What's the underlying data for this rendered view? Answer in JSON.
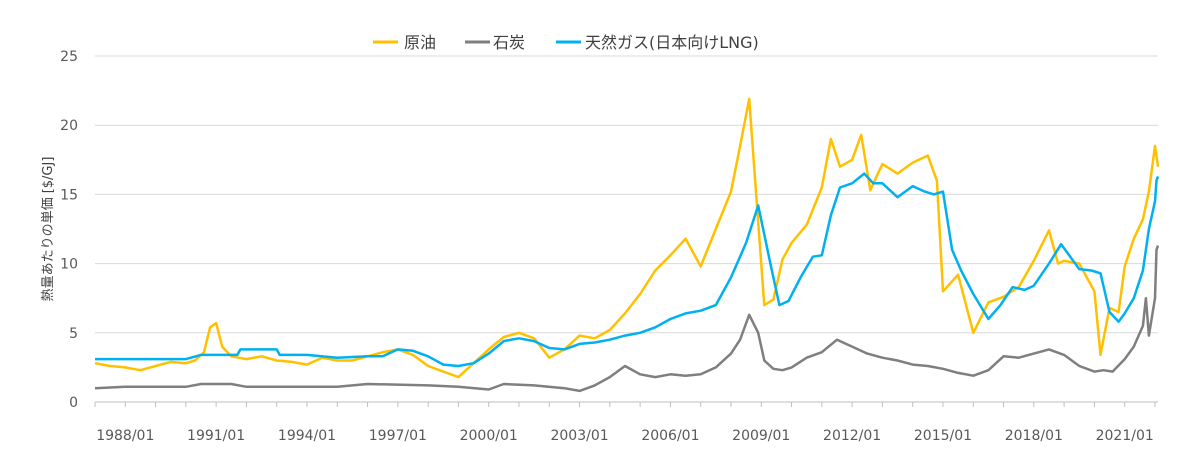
{
  "chart_data": {
    "type": "line",
    "title": "",
    "ylabel": "熱量あたりの単価 [$/GJ]",
    "xlabel": "",
    "ylim": [
      0,
      25
    ],
    "y_ticks": [
      "0",
      "5",
      "10",
      "15",
      "20",
      "25"
    ],
    "x_range": [
      1987.0,
      2022.1
    ],
    "x_ticks": [
      "1988/01",
      "1991/01",
      "1994/01",
      "1997/01",
      "2000/01",
      "2003/01",
      "2006/01",
      "2009/01",
      "2012/01",
      "2015/01",
      "2018/01",
      "2021/01"
    ],
    "grid": true,
    "legend_position": "top",
    "series": [
      {
        "name": "原油",
        "color": "#FFC000",
        "points": [
          [
            1987.0,
            2.8
          ],
          [
            1987.5,
            2.6
          ],
          [
            1988.0,
            2.5
          ],
          [
            1988.5,
            2.3
          ],
          [
            1989.0,
            2.6
          ],
          [
            1989.5,
            2.9
          ],
          [
            1990.0,
            2.8
          ],
          [
            1990.3,
            3.0
          ],
          [
            1990.6,
            3.6
          ],
          [
            1990.8,
            5.4
          ],
          [
            1991.0,
            5.7
          ],
          [
            1991.2,
            4.0
          ],
          [
            1991.5,
            3.3
          ],
          [
            1992.0,
            3.1
          ],
          [
            1992.5,
            3.3
          ],
          [
            1993.0,
            3.0
          ],
          [
            1993.5,
            2.9
          ],
          [
            1994.0,
            2.7
          ],
          [
            1994.5,
            3.2
          ],
          [
            1995.0,
            3.0
          ],
          [
            1995.5,
            3.0
          ],
          [
            1996.0,
            3.3
          ],
          [
            1996.5,
            3.6
          ],
          [
            1997.0,
            3.8
          ],
          [
            1997.5,
            3.4
          ],
          [
            1998.0,
            2.6
          ],
          [
            1998.5,
            2.2
          ],
          [
            1999.0,
            1.8
          ],
          [
            1999.5,
            2.8
          ],
          [
            2000.0,
            3.8
          ],
          [
            2000.5,
            4.7
          ],
          [
            2001.0,
            5.0
          ],
          [
            2001.5,
            4.6
          ],
          [
            2002.0,
            3.2
          ],
          [
            2002.5,
            3.8
          ],
          [
            2003.0,
            4.8
          ],
          [
            2003.5,
            4.6
          ],
          [
            2004.0,
            5.2
          ],
          [
            2004.5,
            6.4
          ],
          [
            2005.0,
            7.8
          ],
          [
            2005.5,
            9.5
          ],
          [
            2006.0,
            10.6
          ],
          [
            2006.5,
            11.8
          ],
          [
            2007.0,
            9.8
          ],
          [
            2007.5,
            12.5
          ],
          [
            2008.0,
            15.2
          ],
          [
            2008.3,
            18.5
          ],
          [
            2008.6,
            21.9
          ],
          [
            2008.9,
            13.0
          ],
          [
            2009.1,
            7.0
          ],
          [
            2009.4,
            7.4
          ],
          [
            2009.7,
            10.3
          ],
          [
            2010.0,
            11.5
          ],
          [
            2010.5,
            12.8
          ],
          [
            2011.0,
            15.5
          ],
          [
            2011.3,
            19.0
          ],
          [
            2011.6,
            17.0
          ],
          [
            2012.0,
            17.5
          ],
          [
            2012.3,
            19.3
          ],
          [
            2012.6,
            15.3
          ],
          [
            2013.0,
            17.2
          ],
          [
            2013.5,
            16.5
          ],
          [
            2014.0,
            17.3
          ],
          [
            2014.5,
            17.8
          ],
          [
            2014.8,
            16.0
          ],
          [
            2015.0,
            8.0
          ],
          [
            2015.5,
            9.2
          ],
          [
            2016.0,
            5.0
          ],
          [
            2016.5,
            7.2
          ],
          [
            2017.0,
            7.6
          ],
          [
            2017.5,
            8.3
          ],
          [
            2018.0,
            10.2
          ],
          [
            2018.5,
            12.4
          ],
          [
            2018.8,
            10.0
          ],
          [
            2019.0,
            10.2
          ],
          [
            2019.5,
            10.0
          ],
          [
            2020.0,
            8.0
          ],
          [
            2020.2,
            3.4
          ],
          [
            2020.5,
            6.8
          ],
          [
            2020.8,
            6.5
          ],
          [
            2021.0,
            9.8
          ],
          [
            2021.3,
            11.8
          ],
          [
            2021.6,
            13.2
          ],
          [
            2021.8,
            15.2
          ],
          [
            2022.0,
            18.5
          ],
          [
            2022.1,
            17.0
          ]
        ]
      },
      {
        "name": "石炭",
        "color": "#7F7F7F",
        "points": [
          [
            1987.0,
            1.0
          ],
          [
            1988.0,
            1.1
          ],
          [
            1990.0,
            1.1
          ],
          [
            1990.5,
            1.3
          ],
          [
            1991.5,
            1.3
          ],
          [
            1992.0,
            1.1
          ],
          [
            1995.0,
            1.1
          ],
          [
            1996.0,
            1.3
          ],
          [
            1998.0,
            1.2
          ],
          [
            1999.0,
            1.1
          ],
          [
            2000.0,
            0.9
          ],
          [
            2000.5,
            1.3
          ],
          [
            2001.5,
            1.2
          ],
          [
            2002.5,
            1.0
          ],
          [
            2003.0,
            0.8
          ],
          [
            2003.5,
            1.2
          ],
          [
            2004.0,
            1.8
          ],
          [
            2004.5,
            2.6
          ],
          [
            2005.0,
            2.0
          ],
          [
            2005.5,
            1.8
          ],
          [
            2006.0,
            2.0
          ],
          [
            2006.5,
            1.9
          ],
          [
            2007.0,
            2.0
          ],
          [
            2007.5,
            2.5
          ],
          [
            2008.0,
            3.5
          ],
          [
            2008.3,
            4.5
          ],
          [
            2008.6,
            6.3
          ],
          [
            2008.9,
            5.0
          ],
          [
            2009.1,
            3.0
          ],
          [
            2009.4,
            2.4
          ],
          [
            2009.7,
            2.3
          ],
          [
            2010.0,
            2.5
          ],
          [
            2010.5,
            3.2
          ],
          [
            2011.0,
            3.6
          ],
          [
            2011.5,
            4.5
          ],
          [
            2012.0,
            4.0
          ],
          [
            2012.5,
            3.5
          ],
          [
            2013.0,
            3.2
          ],
          [
            2013.5,
            3.0
          ],
          [
            2014.0,
            2.7
          ],
          [
            2014.5,
            2.6
          ],
          [
            2015.0,
            2.4
          ],
          [
            2015.5,
            2.1
          ],
          [
            2016.0,
            1.9
          ],
          [
            2016.5,
            2.3
          ],
          [
            2017.0,
            3.3
          ],
          [
            2017.5,
            3.2
          ],
          [
            2018.0,
            3.5
          ],
          [
            2018.5,
            3.8
          ],
          [
            2019.0,
            3.4
          ],
          [
            2019.5,
            2.6
          ],
          [
            2020.0,
            2.2
          ],
          [
            2020.3,
            2.3
          ],
          [
            2020.6,
            2.2
          ],
          [
            2021.0,
            3.1
          ],
          [
            2021.3,
            4.0
          ],
          [
            2021.6,
            5.5
          ],
          [
            2021.7,
            7.5
          ],
          [
            2021.8,
            4.8
          ],
          [
            2022.0,
            7.5
          ],
          [
            2022.05,
            11.0
          ],
          [
            2022.1,
            11.3
          ]
        ]
      },
      {
        "name": "天然ガス(日本向けLNG)",
        "color": "#00B0F0",
        "points": [
          [
            1987.0,
            3.1
          ],
          [
            1990.0,
            3.1
          ],
          [
            1990.5,
            3.4
          ],
          [
            1991.7,
            3.4
          ],
          [
            1991.8,
            3.8
          ],
          [
            1993.0,
            3.8
          ],
          [
            1993.1,
            3.4
          ],
          [
            1994.0,
            3.4
          ],
          [
            1995.0,
            3.2
          ],
          [
            1996.0,
            3.3
          ],
          [
            1996.5,
            3.3
          ],
          [
            1997.0,
            3.8
          ],
          [
            1997.5,
            3.7
          ],
          [
            1998.0,
            3.3
          ],
          [
            1998.5,
            2.7
          ],
          [
            1999.0,
            2.6
          ],
          [
            1999.5,
            2.8
          ],
          [
            2000.0,
            3.5
          ],
          [
            2000.5,
            4.4
          ],
          [
            2001.0,
            4.6
          ],
          [
            2001.5,
            4.4
          ],
          [
            2002.0,
            3.9
          ],
          [
            2002.5,
            3.8
          ],
          [
            2003.0,
            4.2
          ],
          [
            2003.5,
            4.3
          ],
          [
            2004.0,
            4.5
          ],
          [
            2004.5,
            4.8
          ],
          [
            2005.0,
            5.0
          ],
          [
            2005.5,
            5.4
          ],
          [
            2006.0,
            6.0
          ],
          [
            2006.5,
            6.4
          ],
          [
            2007.0,
            6.6
          ],
          [
            2007.5,
            7.0
          ],
          [
            2008.0,
            9.0
          ],
          [
            2008.5,
            11.5
          ],
          [
            2008.9,
            14.2
          ],
          [
            2009.3,
            10.0
          ],
          [
            2009.6,
            7.0
          ],
          [
            2009.9,
            7.3
          ],
          [
            2010.3,
            9.0
          ],
          [
            2010.7,
            10.5
          ],
          [
            2011.0,
            10.6
          ],
          [
            2011.3,
            13.5
          ],
          [
            2011.6,
            15.5
          ],
          [
            2012.0,
            15.8
          ],
          [
            2012.4,
            16.5
          ],
          [
            2012.7,
            15.8
          ],
          [
            2013.0,
            15.8
          ],
          [
            2013.5,
            14.8
          ],
          [
            2014.0,
            15.6
          ],
          [
            2014.4,
            15.2
          ],
          [
            2014.7,
            15.0
          ],
          [
            2015.0,
            15.2
          ],
          [
            2015.3,
            11.0
          ],
          [
            2015.6,
            9.5
          ],
          [
            2016.0,
            7.8
          ],
          [
            2016.5,
            6.0
          ],
          [
            2016.9,
            7.0
          ],
          [
            2017.3,
            8.3
          ],
          [
            2017.7,
            8.1
          ],
          [
            2018.0,
            8.4
          ],
          [
            2018.5,
            10.0
          ],
          [
            2018.9,
            11.4
          ],
          [
            2019.2,
            10.5
          ],
          [
            2019.5,
            9.6
          ],
          [
            2019.9,
            9.5
          ],
          [
            2020.2,
            9.3
          ],
          [
            2020.5,
            6.5
          ],
          [
            2020.8,
            5.8
          ],
          [
            2021.0,
            6.4
          ],
          [
            2021.3,
            7.5
          ],
          [
            2021.6,
            9.5
          ],
          [
            2021.8,
            12.5
          ],
          [
            2022.0,
            14.5
          ],
          [
            2022.05,
            16.0
          ],
          [
            2022.1,
            16.3
          ]
        ]
      }
    ]
  }
}
